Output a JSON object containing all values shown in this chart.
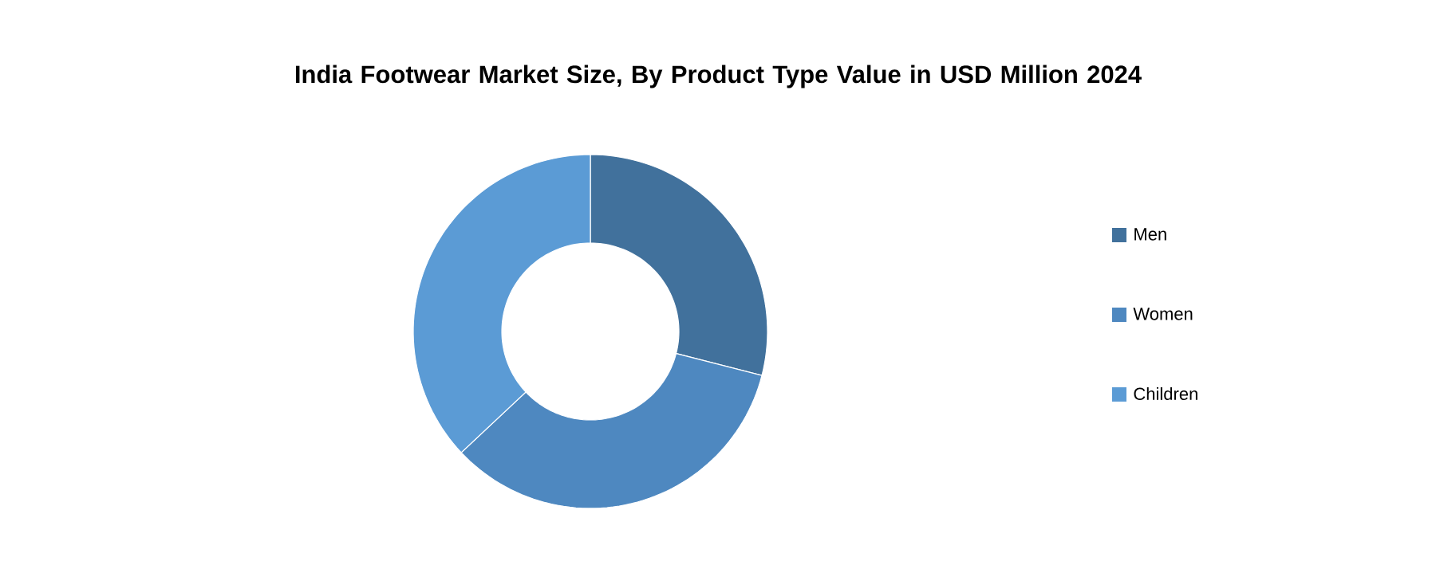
{
  "chart_data": {
    "type": "donut",
    "title": "India Footwear Market Size, By Product Type Value in USD Million 2024",
    "categories": [
      "Men",
      "Women",
      "Children"
    ],
    "values": [
      29,
      34,
      37
    ],
    "colors": [
      "#41719c",
      "#4e88c0",
      "#5b9bd5"
    ],
    "legend": "right"
  }
}
